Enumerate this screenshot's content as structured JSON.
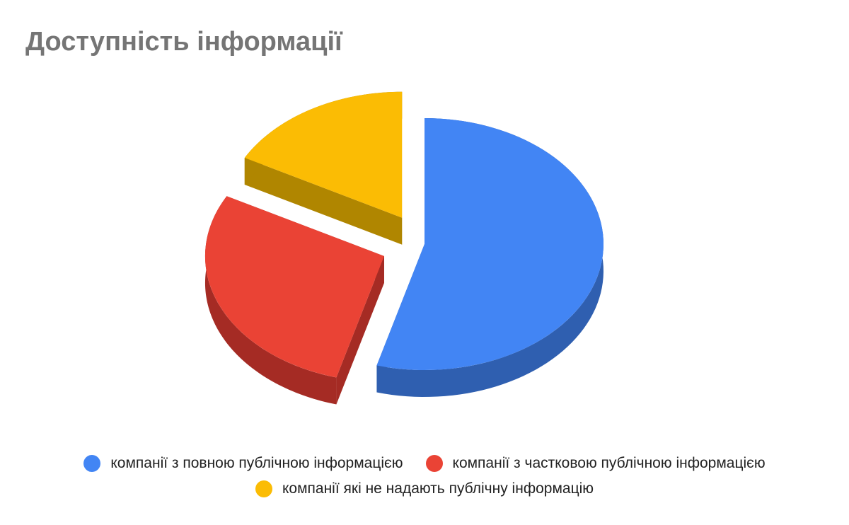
{
  "chart_data": {
    "type": "pie",
    "style": "3d-exploded",
    "title": "Доступність інформації",
    "legend_position": "bottom",
    "slices": [
      {
        "name": "компанії з повною публічною інформацією",
        "value": 54.3,
        "color": "#4285f4",
        "side_color": "#2f5fb0",
        "exploded": false
      },
      {
        "name": "компанії з частковою публічною інформацією",
        "value": 28.6,
        "color": "#ea4335",
        "side_color": "#a52b24",
        "exploded": true
      },
      {
        "name": "компанії які не надають публічну інформацію",
        "value": 17.1,
        "color": "#fbbc04",
        "side_color": "#b08600",
        "exploded": true
      }
    ]
  }
}
